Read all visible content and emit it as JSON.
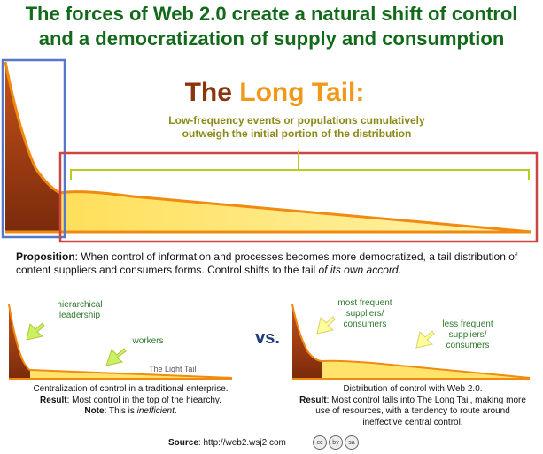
{
  "headline": {
    "line1": "The forces of Web 2.0 create a natural shift of control",
    "line2": "and a democratization of supply and consumption"
  },
  "long_tail": {
    "title_part1": "The ",
    "title_part2": "Long Tail:",
    "subtitle_line1": "Low-frequency events or populations cumulatively",
    "subtitle_line2": "outweigh the initial portion of the distribution"
  },
  "proposition": {
    "label": "Proposition",
    "text1": ": When control of information and processes becomes more democratized, a tail distribution of content suppliers and consumers forms.  Control shifts to the tail ",
    "text_italic": "of its own accord",
    "text_end": "."
  },
  "left_panel": {
    "label_hierarchical": "hierarchical leadership",
    "label_workers": "workers",
    "label_light_tail": "The Light Tail",
    "caption_line1": "Centralization of control in a traditional enterprise.",
    "result_label": "Result",
    "result_text": ": Most control in the top of the hiearchy.",
    "note_label": "Note",
    "note_text": ": This is ",
    "note_italic": "inefficient",
    "note_end": "."
  },
  "vs": "vs.",
  "right_panel": {
    "label_most_frequent": "most frequent suppliers/ consumers",
    "label_less_frequent": "less frequent suppliers/ consumers",
    "caption_line1": "Distribution of control with Web 2.0.",
    "result_label": "Result",
    "result_text": ": Most control falls into The Long Tail, making more use of resources, with a tendency to route around ineffective central control."
  },
  "source": {
    "label": "Source",
    "text": ":  http://web2.wsj2.com"
  },
  "license_icons": [
    "cc",
    "by",
    "sa"
  ],
  "colors": {
    "headline": "#136a1a",
    "head_dark": "#8a3410",
    "tail_light": "#ffe36a",
    "accent_orange": "#f09818",
    "box_blue": "#5577cc",
    "box_red": "#cc4444",
    "arrow_green": "#ccf060",
    "arrow_yellow": "#ffff99"
  }
}
